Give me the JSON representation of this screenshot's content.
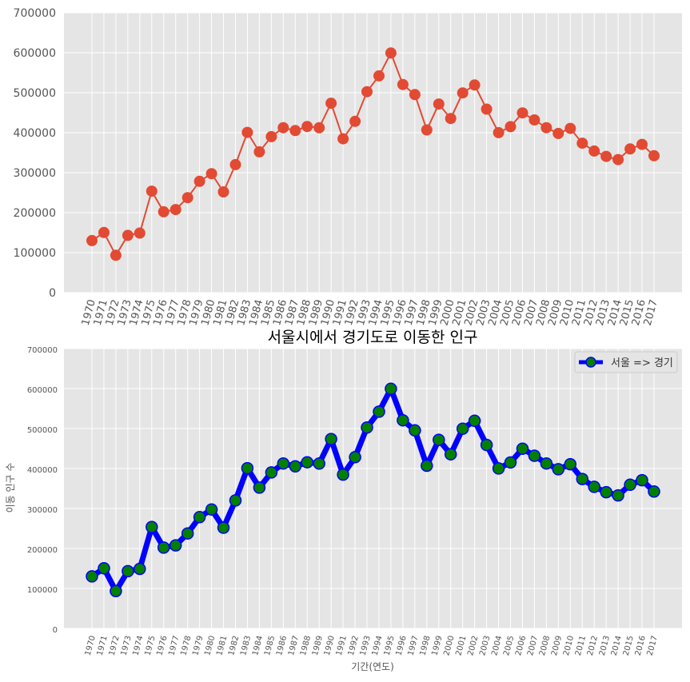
{
  "chart_data": [
    {
      "type": "line",
      "title": "",
      "xlabel": "",
      "ylabel": "",
      "categories": [
        "1970",
        "1971",
        "1972",
        "1973",
        "1974",
        "1975",
        "1976",
        "1977",
        "1978",
        "1979",
        "1980",
        "1981",
        "1982",
        "1983",
        "1984",
        "1985",
        "1986",
        "1987",
        "1988",
        "1989",
        "1990",
        "1991",
        "1992",
        "1993",
        "1994",
        "1995",
        "1996",
        "1997",
        "1998",
        "1999",
        "2000",
        "2001",
        "2002",
        "2003",
        "2004",
        "2005",
        "2006",
        "2007",
        "2008",
        "2009",
        "2010",
        "2011",
        "2012",
        "2013",
        "2014",
        "2015",
        "2016",
        "2017"
      ],
      "series": [
        {
          "values": [
            130149,
            150313,
            93333,
            143234,
            149045,
            253705,
            202276,
            207722,
            237684,
            278411,
            297539,
            252073,
            320174,
            400875,
            352238,
            390265,
            412535,
            405495,
            415540,
            412408,
            473889,
            384714,
            428344,
            502584,
            542204,
            599411,
            520566,
            495454,
            407050,
            471841,
            435573,
            499575,
            519310,
            458926,
            400106,
            415273,
            449577,
            431972,
            412603,
            398282,
            410735,
            373771,
            354135,
            340801,
            332785,
            359337,
            370760,
            342433
          ],
          "color": "#e24a33"
        }
      ],
      "ylim": [
        0,
        700000
      ],
      "yticks": [
        "0",
        "100000",
        "200000",
        "300000",
        "400000",
        "500000",
        "600000",
        "700000"
      ],
      "grid": true,
      "legend": "none"
    },
    {
      "type": "line",
      "title": "서울시에서 경기도로 이동한 인구",
      "xlabel": "기간(연도)",
      "ylabel": "이동 인구 수",
      "categories": [
        "1970",
        "1971",
        "1972",
        "1973",
        "1974",
        "1975",
        "1976",
        "1977",
        "1978",
        "1979",
        "1980",
        "1981",
        "1982",
        "1983",
        "1984",
        "1985",
        "1986",
        "1987",
        "1988",
        "1989",
        "1990",
        "1991",
        "1992",
        "1993",
        "1994",
        "1995",
        "1996",
        "1997",
        "1998",
        "1999",
        "2000",
        "2001",
        "2002",
        "2003",
        "2004",
        "2005",
        "2006",
        "2007",
        "2008",
        "2009",
        "2010",
        "2011",
        "2012",
        "2013",
        "2014",
        "2015",
        "2016",
        "2017"
      ],
      "series": [
        {
          "name": "서울 => 경기",
          "values": [
            130149,
            150313,
            93333,
            143234,
            149045,
            253705,
            202276,
            207722,
            237684,
            278411,
            297539,
            252073,
            320174,
            400875,
            352238,
            390265,
            412535,
            405495,
            415540,
            412408,
            473889,
            384714,
            428344,
            502584,
            542204,
            599411,
            520566,
            495454,
            407050,
            471841,
            435573,
            499575,
            519310,
            458926,
            400106,
            415273,
            449577,
            431972,
            412603,
            398282,
            410735,
            373771,
            354135,
            340801,
            332785,
            359337,
            370760,
            342433
          ],
          "color": "#0000ff",
          "marker_color": "#008000"
        }
      ],
      "ylim": [
        0,
        700000
      ],
      "yticks": [
        "0",
        "100000",
        "200000",
        "300000",
        "400000",
        "500000",
        "600000",
        "700000"
      ],
      "grid": true,
      "legend": "top-right"
    }
  ]
}
